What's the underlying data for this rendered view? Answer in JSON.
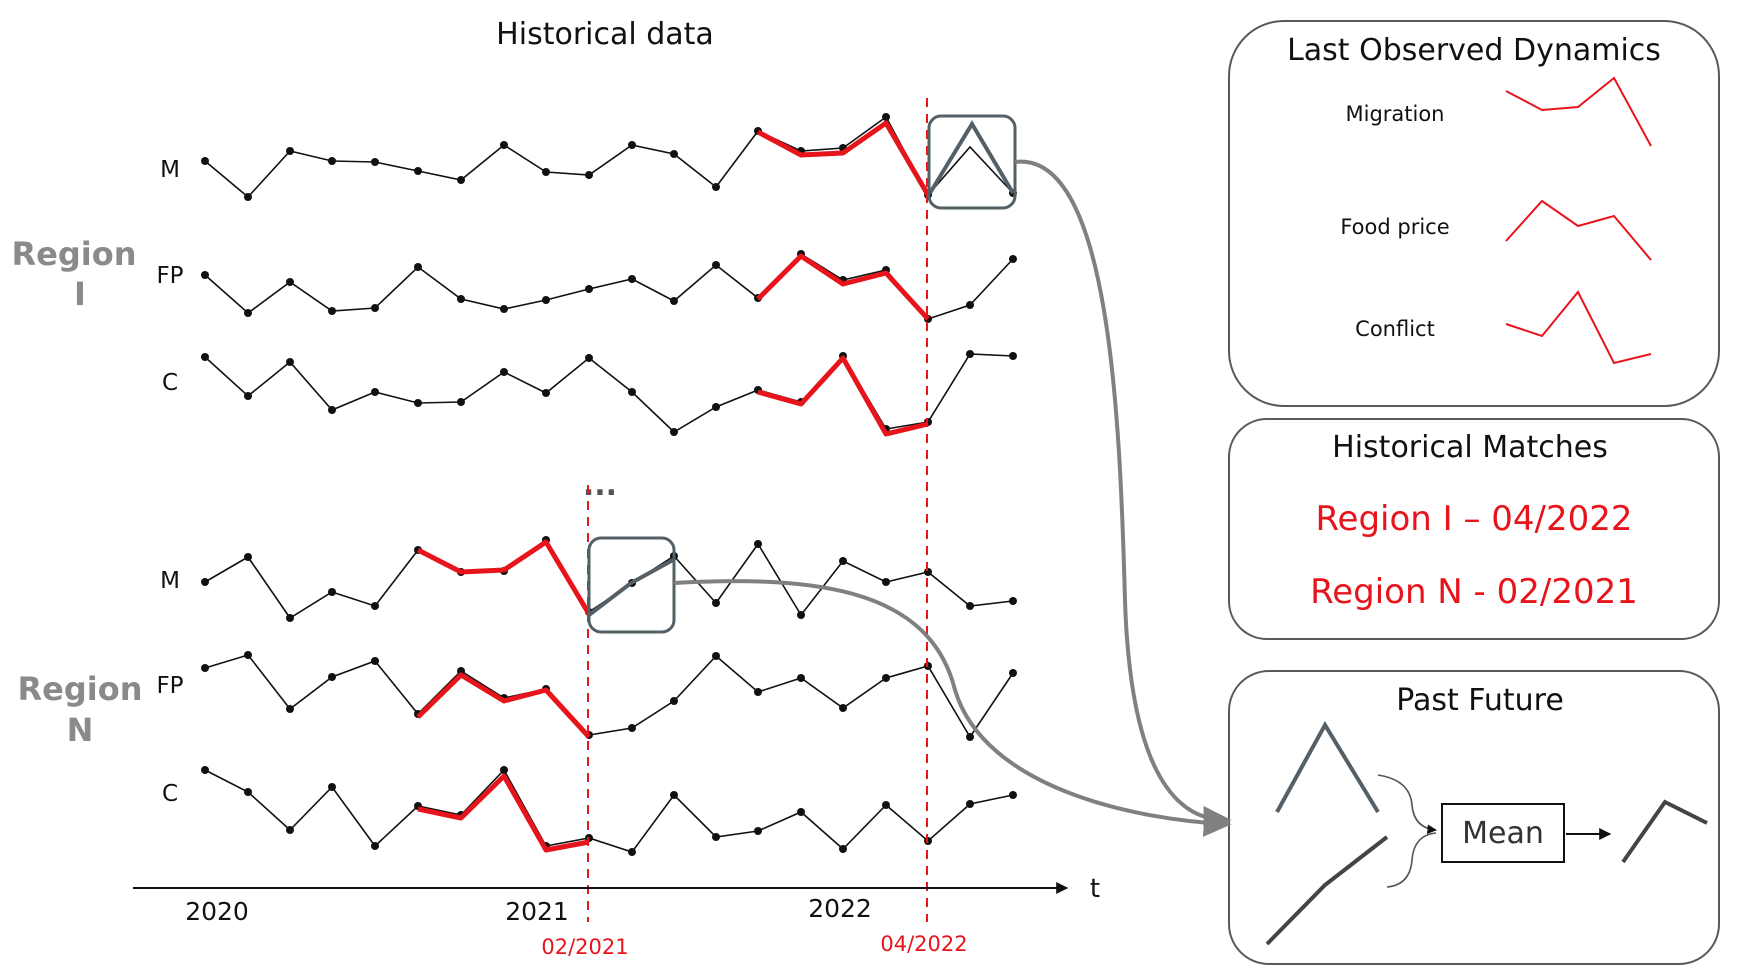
{
  "main": {
    "title": "Historical data",
    "time_axis": {
      "label": "t",
      "years": [
        "2020",
        "2021",
        "2022"
      ]
    },
    "markers": [
      "02/2021",
      "04/2022"
    ],
    "ellipsis": "...",
    "regions": [
      {
        "label_line1": "Region",
        "label_line2": "I",
        "rows": [
          "M",
          "FP",
          "C"
        ]
      },
      {
        "label_line1": "Region",
        "label_line2": "N",
        "rows": [
          "M",
          "FP",
          "C"
        ]
      }
    ]
  },
  "panels": {
    "last_observed": {
      "title": "Last Observed Dynamics",
      "items": [
        "Migration",
        "Food price",
        "Conflict"
      ]
    },
    "matches": {
      "title": "Historical Matches",
      "items": [
        "Region I – 04/2022",
        "Region N - 02/2021"
      ]
    },
    "past_future": {
      "title": "Past Future",
      "mean_label": "Mean"
    }
  },
  "colors": {
    "highlight": "#e8141c",
    "series": "#111111",
    "window": "#555f66",
    "arrow": "#808080"
  }
}
